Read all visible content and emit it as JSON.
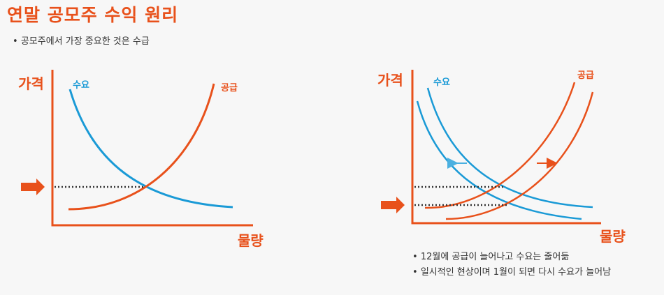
{
  "title": "연말 공모주 수익 원리",
  "bullet": "공모주에서 가장 중요한 것은 수급",
  "left_diagram": {
    "y_label": "가격",
    "x_label": "물량",
    "demand_label": "수요",
    "supply_label": "공급"
  },
  "right_diagram": {
    "y_label": "가격",
    "x_label": "물량",
    "demand_label": "수요",
    "supply_label": "공급"
  },
  "notes": [
    "12월에 공급이 늘어나고 수요는 줄어듦",
    "일시적인 현상이며 1월이 되면 다시 수요가 늘어남"
  ],
  "colors": {
    "accent": "#e8511b",
    "demand": "#1a9ad6",
    "supply": "#e8511b",
    "axis": "#e8511b"
  }
}
